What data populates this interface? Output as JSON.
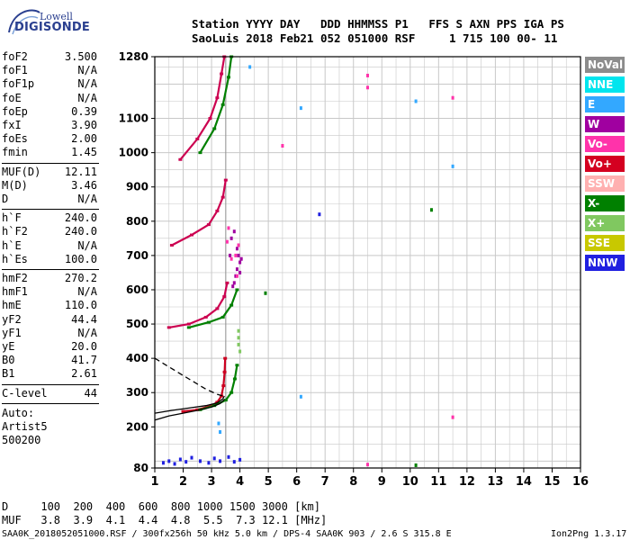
{
  "logo": {
    "line1": "Lowell",
    "line2": "DIGISONDE"
  },
  "header": {
    "line1": "Station YYYY DAY   DDD HHMMSS P1   FFS S AXN PPS IGA PS",
    "line2": "SaoLuis 2018 Feb21 052 051000 RSF     1 715 100 00- 11"
  },
  "params_group1": [
    {
      "k": "foF2",
      "v": "3.500"
    },
    {
      "k": "foF1",
      "v": "N/A"
    },
    {
      "k": "foF1p",
      "v": "N/A"
    },
    {
      "k": "foE",
      "v": "N/A"
    },
    {
      "k": "foEp",
      "v": "0.39"
    },
    {
      "k": "fxI",
      "v": "3.90"
    },
    {
      "k": "foEs",
      "v": "2.00"
    },
    {
      "k": "fmin",
      "v": "1.45"
    }
  ],
  "params_group2": [
    {
      "k": "MUF(D)",
      "v": "12.11"
    },
    {
      "k": "M(D)",
      "v": "3.46"
    },
    {
      "k": "D",
      "v": "N/A"
    }
  ],
  "params_group3": [
    {
      "k": "h`F",
      "v": "240.0"
    },
    {
      "k": "h`F2",
      "v": "240.0"
    },
    {
      "k": "h`E",
      "v": "N/A"
    },
    {
      "k": "h`Es",
      "v": "100.0"
    }
  ],
  "params_group4": [
    {
      "k": "hmF2",
      "v": "270.2"
    },
    {
      "k": "hmF1",
      "v": "N/A"
    },
    {
      "k": "hmE",
      "v": "110.0"
    },
    {
      "k": "yF2",
      "v": "44.4"
    },
    {
      "k": "yF1",
      "v": "N/A"
    },
    {
      "k": "yE",
      "v": "20.0"
    },
    {
      "k": "B0",
      "v": "41.7"
    },
    {
      "k": "B1",
      "v": "2.61"
    }
  ],
  "clevel": {
    "k": "C-level",
    "v": "44"
  },
  "auto": {
    "line1": "Auto:",
    "line2": "Artist5",
    "line3": "500200"
  },
  "legend": [
    {
      "label": "NoVal",
      "bg": "#8c8c8c",
      "fg": "#ffffff"
    },
    {
      "label": "NNE",
      "bg": "#00e5ee",
      "fg": "#ffffff"
    },
    {
      "label": "E",
      "bg": "#33a8ff",
      "fg": "#ffffff"
    },
    {
      "label": "W",
      "bg": "#a000a0",
      "fg": "#ffffff"
    },
    {
      "label": "Vo-",
      "bg": "#ff33aa",
      "fg": "#ffffff"
    },
    {
      "label": "Vo+",
      "bg": "#d40020",
      "fg": "#ffffff"
    },
    {
      "label": "SSW",
      "bg": "#ffb0b0",
      "fg": "#ffffff"
    },
    {
      "label": "X-",
      "bg": "#008000",
      "fg": "#ffffff"
    },
    {
      "label": "X+",
      "bg": "#80c860",
      "fg": "#ffffff"
    },
    {
      "label": "SSE",
      "bg": "#c8c800",
      "fg": "#ffffff"
    },
    {
      "label": "NNW",
      "bg": "#2020e0",
      "fg": "#ffffff"
    }
  ],
  "mufrow": {
    "d_line": "D     100  200  400  600  800 1000 1500 3000 [km]",
    "muf_line": "MUF   3.8  3.9  4.1  4.4  4.8  5.5  7.3 12.1 [MHz]"
  },
  "footer": {
    "left": "SAA0K_2018052051000.RSF / 300fx256h 50 kHz 5.0 km / DPS-4 SAA0K 903 / 2.6 S 315.8 E",
    "right": "Ion2Png 1.3.17"
  },
  "chart_data": {
    "type": "scatter",
    "title": "",
    "xlabel": "",
    "ylabel": "",
    "xlim": [
      1,
      16
    ],
    "ylim": [
      80,
      1280
    ],
    "x_ticks": [
      1,
      2,
      3,
      4,
      5,
      6,
      7,
      8,
      9,
      10,
      11,
      12,
      13,
      14,
      15,
      16
    ],
    "y_ticks": [
      80,
      200,
      300,
      400,
      500,
      600,
      700,
      800,
      900,
      1000,
      1100,
      1280
    ],
    "grid": true,
    "foF2_marker": 3.5,
    "traces": [
      {
        "name": "F2 o-trace (Vo+)",
        "color": "#cc0020",
        "points": [
          [
            2,
            245
          ],
          [
            2.5,
            250
          ],
          [
            3.0,
            262
          ],
          [
            3.2,
            272
          ],
          [
            3.35,
            290
          ],
          [
            3.42,
            320
          ],
          [
            3.46,
            360
          ],
          [
            3.48,
            400
          ]
        ]
      },
      {
        "name": "F2 x-trace (X-)",
        "color": "#008000",
        "points": [
          [
            2.6,
            250
          ],
          [
            3.1,
            262
          ],
          [
            3.5,
            278
          ],
          [
            3.7,
            300
          ],
          [
            3.82,
            340
          ],
          [
            3.9,
            380
          ]
        ]
      },
      {
        "name": "profile",
        "color": "#000000",
        "points": [
          [
            1,
            220
          ],
          [
            1.5,
            232
          ],
          [
            2,
            240
          ],
          [
            2.5,
            248
          ],
          [
            3,
            258
          ],
          [
            3.3,
            268
          ],
          [
            3.45,
            280
          ]
        ]
      },
      {
        "name": "profile-lower",
        "color": "#000000",
        "points": [
          [
            1,
            240
          ],
          [
            1.6,
            248
          ],
          [
            2.2,
            255
          ],
          [
            2.8,
            262
          ],
          [
            3.2,
            270
          ],
          [
            3.4,
            282
          ],
          [
            3.45,
            290
          ]
        ]
      },
      {
        "name": "topside",
        "color": "#000000",
        "dashed": true,
        "points": [
          [
            1,
            400
          ],
          [
            1.6,
            370
          ],
          [
            2.2,
            340
          ],
          [
            2.8,
            310
          ],
          [
            3.2,
            295
          ],
          [
            3.5,
            288
          ]
        ]
      },
      {
        "name": "2F o",
        "color": "#cc0050",
        "points": [
          [
            1.5,
            490
          ],
          [
            2.2,
            500
          ],
          [
            2.8,
            520
          ],
          [
            3.2,
            545
          ],
          [
            3.45,
            580
          ],
          [
            3.55,
            620
          ]
        ]
      },
      {
        "name": "2F x",
        "color": "#008000",
        "points": [
          [
            2.2,
            490
          ],
          [
            2.9,
            505
          ],
          [
            3.4,
            520
          ],
          [
            3.7,
            555
          ],
          [
            3.9,
            600
          ]
        ]
      },
      {
        "name": "3F o",
        "color": "#cc0050",
        "points": [
          [
            1.6,
            730
          ],
          [
            2.3,
            760
          ],
          [
            2.9,
            790
          ],
          [
            3.2,
            830
          ],
          [
            3.4,
            870
          ],
          [
            3.5,
            920
          ]
        ]
      },
      {
        "name": "4F o",
        "color": "#cc0050",
        "points": [
          [
            1.9,
            980
          ],
          [
            2.5,
            1040
          ],
          [
            2.95,
            1100
          ],
          [
            3.2,
            1160
          ],
          [
            3.35,
            1230
          ],
          [
            3.45,
            1280
          ]
        ]
      },
      {
        "name": "4F x",
        "color": "#008000",
        "points": [
          [
            2.6,
            1000
          ],
          [
            3.1,
            1070
          ],
          [
            3.4,
            1140
          ],
          [
            3.6,
            1220
          ],
          [
            3.7,
            1280
          ]
        ]
      }
    ],
    "scatter": [
      {
        "color": "#a000a0",
        "points": [
          [
            3.8,
            620
          ],
          [
            3.9,
            660
          ],
          [
            3.95,
            700
          ],
          [
            4.0,
            680
          ],
          [
            3.85,
            640
          ],
          [
            4.05,
            690
          ],
          [
            3.75,
            610
          ],
          [
            3.9,
            720
          ],
          [
            4.0,
            650
          ],
          [
            3.7,
            750
          ],
          [
            3.65,
            700
          ],
          [
            3.8,
            770
          ]
        ]
      },
      {
        "color": "#ff33aa",
        "points": [
          [
            3.9,
            640
          ],
          [
            3.95,
            730
          ],
          [
            3.7,
            690
          ],
          [
            3.6,
            780
          ],
          [
            3.55,
            740
          ],
          [
            3.85,
            700
          ]
        ]
      },
      {
        "color": "#2020e0",
        "points": [
          [
            1.3,
            95
          ],
          [
            1.5,
            100
          ],
          [
            1.7,
            92
          ],
          [
            1.9,
            105
          ],
          [
            2.1,
            98
          ],
          [
            2.3,
            110
          ],
          [
            2.6,
            100
          ],
          [
            2.9,
            95
          ],
          [
            3.1,
            108
          ],
          [
            3.3,
            100
          ],
          [
            3.6,
            112
          ],
          [
            3.8,
            98
          ],
          [
            4.0,
            104
          ]
        ]
      },
      {
        "color": "#33a8ff",
        "points": [
          [
            6.15,
            288
          ],
          [
            6.15,
            1130
          ],
          [
            10.2,
            1150
          ],
          [
            11.5,
            960
          ],
          [
            4.35,
            1250
          ],
          [
            3.25,
            210
          ],
          [
            3.3,
            185
          ]
        ]
      },
      {
        "color": "#ff33aa",
        "points": [
          [
            5.5,
            1020
          ],
          [
            8.5,
            1225
          ],
          [
            8.5,
            1190
          ],
          [
            11.5,
            1160
          ],
          [
            11.5,
            228
          ],
          [
            8.5,
            90
          ]
        ]
      },
      {
        "color": "#008000",
        "points": [
          [
            10.75,
            833
          ],
          [
            10.2,
            88
          ],
          [
            4.9,
            590
          ]
        ]
      },
      {
        "color": "#2020e0",
        "points": [
          [
            6.8,
            820
          ]
        ]
      },
      {
        "color": "#80c860",
        "points": [
          [
            3.95,
            440
          ],
          [
            3.95,
            460
          ],
          [
            4.0,
            420
          ],
          [
            3.95,
            480
          ]
        ]
      }
    ]
  }
}
